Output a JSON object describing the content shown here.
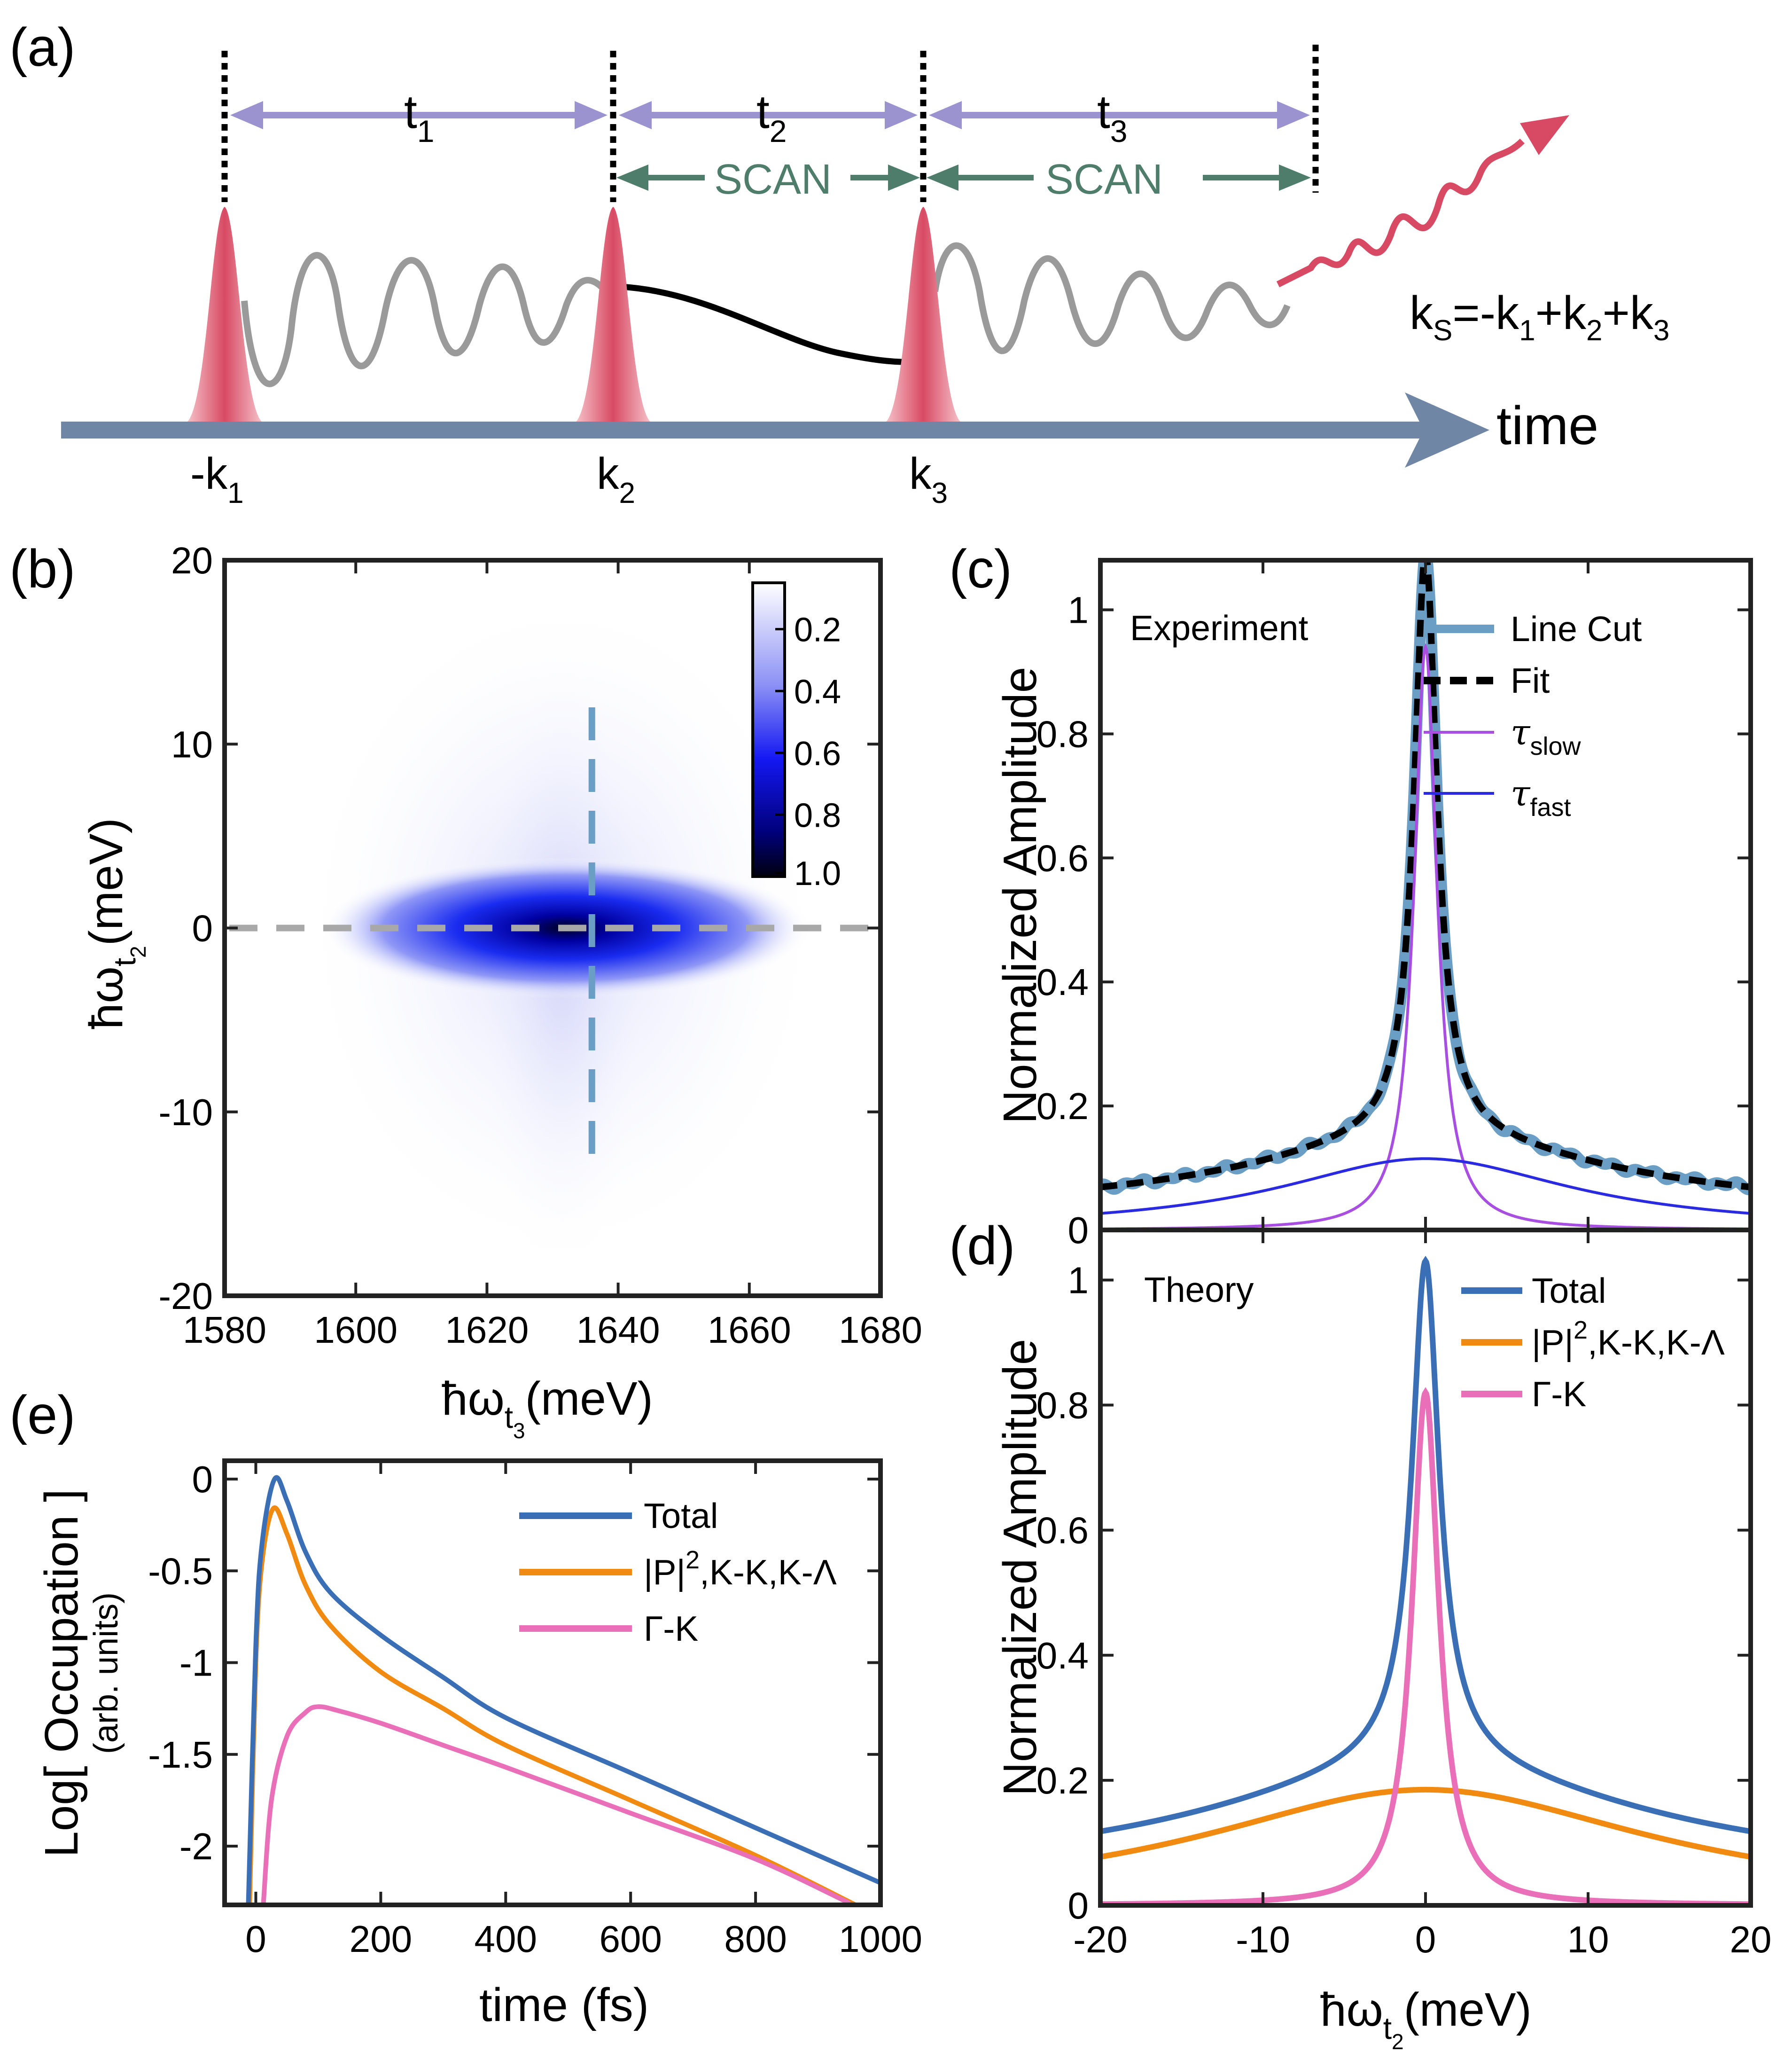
{
  "panel_a": {
    "label": "(a)",
    "intervals": [
      {
        "t": "t",
        "sub": "1"
      },
      {
        "t": "t",
        "sub": "2"
      },
      {
        "t": "t",
        "sub": "3"
      }
    ],
    "scan_labels": [
      "SCAN",
      "SCAN"
    ],
    "signal": {
      "k": "k",
      "sub": "S",
      "rest": "=-k",
      "sub1": "1",
      "mid": "+k",
      "sub2": "2",
      "mid2": "+k",
      "sub3": "3"
    },
    "time_label": "time",
    "pulses": [
      {
        "k": "-k",
        "sub": "1"
      },
      {
        "k": "k",
        "sub": "2"
      },
      {
        "k": "k",
        "sub": "3"
      }
    ],
    "colors": {
      "pulse": "#d84a63",
      "arrow": "#9b93cf",
      "scan": "#4f7d6c",
      "axis": "#6f87a4",
      "wave": "#9a9a9a"
    }
  },
  "chart_data": [
    {
      "id": "b",
      "type": "heatmap",
      "label": "(b)",
      "xlabel": {
        "main": "ħω",
        "sub": "t",
        "subsub": "3",
        "unit": "(meV)"
      },
      "ylabel": {
        "main": "ħω",
        "sub": "t",
        "subsub": "2",
        "unit": "(meV)"
      },
      "xlim": [
        1580,
        1680
      ],
      "ylim": [
        -20,
        20
      ],
      "xticks": [
        1580,
        1600,
        1620,
        1640,
        1660,
        1680
      ],
      "yticks": [
        20,
        10,
        0,
        -10,
        -20
      ],
      "peak": {
        "x": 1632,
        "y": 0
      },
      "cuts": {
        "horizontal_y": 0,
        "vertical_x": 1636,
        "vertical_range": [
          -12.5,
          12
        ]
      },
      "colorbar": {
        "ticks": [
          "0.2",
          "0.4",
          "0.6",
          "0.8",
          "1.0"
        ],
        "values": [
          0.2,
          0.4,
          0.6,
          0.8,
          1.0
        ]
      }
    },
    {
      "id": "c",
      "type": "line",
      "label": "(c)",
      "annotation": "Experiment",
      "ylabel": "Normalized Amplitude",
      "xlim": [
        -20,
        20
      ],
      "ylim": [
        0,
        1.08
      ],
      "yticks": [
        "0",
        "0.2",
        "0.4",
        "0.6",
        "0.8",
        "1"
      ],
      "series": [
        {
          "name": "Line Cut",
          "color": "#6a9ec4",
          "peak": 1.05
        },
        {
          "name": "Fit",
          "color": "#000000",
          "peak": 1.05
        },
        {
          "name": "τ",
          "sub": "slow",
          "color": "#a84ee0",
          "peak": 0.94
        },
        {
          "name": "τ",
          "sub": "fast",
          "color": "#2a2ae0",
          "peak": 0.115
        }
      ]
    },
    {
      "id": "d",
      "type": "line",
      "label": "(d)",
      "annotation": "Theory",
      "ylabel": "Normalized Amplitude",
      "xlabel": {
        "main": "ħω",
        "sub": "t",
        "subsub": "2",
        "unit": "(meV)"
      },
      "xlim": [
        -20,
        20
      ],
      "ylim": [
        0,
        1.08
      ],
      "xticks": [
        -20,
        -10,
        0,
        10,
        20
      ],
      "yticks": [
        "0",
        "0.2",
        "0.4",
        "0.6",
        "0.8",
        "1"
      ],
      "series": [
        {
          "name": "Total",
          "color": "#3a6fb6",
          "peak": 1.05
        },
        {
          "name": "|P|",
          "sup": "2",
          "rest": ",K-K,K-Λ",
          "color": "#f08a10",
          "peak": 0.185
        },
        {
          "name": "Γ-K",
          "color": "#ea6fb9",
          "peak": 0.82
        }
      ]
    },
    {
      "id": "e",
      "type": "line",
      "label": "(e)",
      "ylabel": "Log[ Occupation ]",
      "ylabel2": "(arb. units)",
      "xlabel": "time (fs)",
      "xlim": [
        -50,
        1000
      ],
      "ylim": [
        -2.32,
        0.1
      ],
      "xticks": [
        0,
        200,
        400,
        600,
        800,
        1000
      ],
      "yticks": [
        "0",
        "-0.5",
        "-1",
        "-1.5",
        "-2"
      ],
      "series": [
        {
          "name": "Total",
          "color": "#3a6fb6",
          "points": [
            [
              -12,
              -2.32
            ],
            [
              0,
              -0.9
            ],
            [
              10,
              -0.35
            ],
            [
              30,
              0.0
            ],
            [
              50,
              -0.12
            ],
            [
              80,
              -0.4
            ],
            [
              120,
              -0.62
            ],
            [
              200,
              -0.85
            ],
            [
              300,
              -1.08
            ],
            [
              400,
              -1.3
            ],
            [
              600,
              -1.6
            ],
            [
              800,
              -1.9
            ],
            [
              1000,
              -2.2
            ]
          ]
        },
        {
          "name": "|P|",
          "sup": "2",
          "rest": ",K-K,K-Λ",
          "color": "#f08a10",
          "points": [
            [
              -10,
              -2.32
            ],
            [
              0,
              -1.0
            ],
            [
              10,
              -0.45
            ],
            [
              28,
              -0.16
            ],
            [
              50,
              -0.3
            ],
            [
              80,
              -0.58
            ],
            [
              120,
              -0.8
            ],
            [
              200,
              -1.05
            ],
            [
              300,
              -1.25
            ],
            [
              400,
              -1.45
            ],
            [
              600,
              -1.75
            ],
            [
              800,
              -2.05
            ],
            [
              960,
              -2.32
            ]
          ]
        },
        {
          "name": "Γ-K",
          "color": "#ea6fb9",
          "points": [
            [
              12,
              -2.32
            ],
            [
              25,
              -1.75
            ],
            [
              50,
              -1.4
            ],
            [
              80,
              -1.27
            ],
            [
              100,
              -1.24
            ],
            [
              130,
              -1.26
            ],
            [
              200,
              -1.33
            ],
            [
              300,
              -1.45
            ],
            [
              400,
              -1.57
            ],
            [
              600,
              -1.82
            ],
            [
              800,
              -2.07
            ],
            [
              950,
              -2.31
            ]
          ]
        }
      ]
    }
  ]
}
